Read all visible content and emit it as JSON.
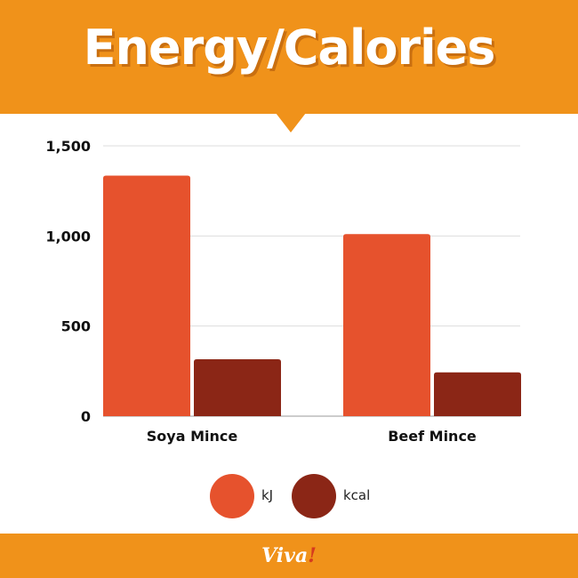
{
  "header": {
    "title": "Energy/Calories"
  },
  "colors": {
    "header_bg": "#f0921a",
    "series_kj": "#e6522d",
    "series_kcal": "#8b2616",
    "grid": "#dddddd",
    "text": "#111111"
  },
  "brand": {
    "logo_text": "Viva",
    "logo_mark": "!"
  },
  "chart_data": {
    "type": "bar",
    "title": "Energy/Calories",
    "categories": [
      "Soya Mince",
      "Beef Mince"
    ],
    "series": [
      {
        "name": "kJ",
        "values": [
          1335,
          1010
        ]
      },
      {
        "name": "kcal",
        "values": [
          316,
          243
        ]
      }
    ],
    "yticks": [
      "0",
      "500",
      "1,000",
      "1,500"
    ],
    "ytick_values": [
      0,
      500,
      1000,
      1500
    ],
    "ylim": [
      0,
      1500
    ],
    "xlabel": "",
    "ylabel": "",
    "grid": true,
    "legend_position": "bottom"
  }
}
